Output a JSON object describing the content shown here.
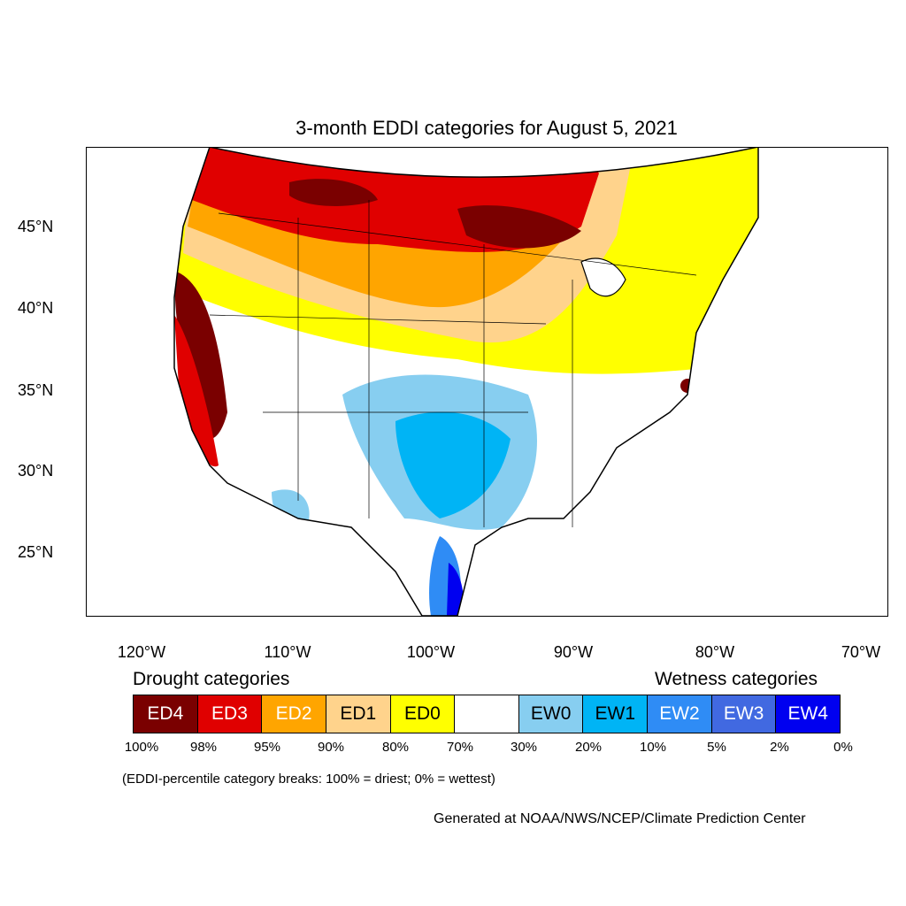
{
  "title": "3-month EDDI categories for August 5, 2021",
  "lat_labels": [
    "45°N",
    "40°N",
    "35°N",
    "30°N",
    "25°N"
  ],
  "lon_labels": [
    "120°W",
    "110°W",
    "100°W",
    "90°W",
    "80°W",
    "70°W"
  ],
  "drought_heading": "Drought categories",
  "wetness_heading": "Wetness categories",
  "legend": [
    {
      "label": "ED4",
      "color": "#7a0000",
      "text_color": "#ffffff"
    },
    {
      "label": "ED3",
      "color": "#e00000",
      "text_color": "#ffffff"
    },
    {
      "label": "ED2",
      "color": "#ffa500",
      "text_color": "#ffffff"
    },
    {
      "label": "ED1",
      "color": "#ffd38c",
      "text_color": "#000000"
    },
    {
      "label": "ED0",
      "color": "#ffff00",
      "text_color": "#000000"
    },
    {
      "label": "",
      "color": "#ffffff",
      "text_color": "#000000"
    },
    {
      "label": "EW0",
      "color": "#87cef0",
      "text_color": "#000000"
    },
    {
      "label": "EW1",
      "color": "#00b4f5",
      "text_color": "#000000"
    },
    {
      "label": "EW2",
      "color": "#2f8cf5",
      "text_color": "#ffffff"
    },
    {
      "label": "EW3",
      "color": "#4169e1",
      "text_color": "#ffffff"
    },
    {
      "label": "EW4",
      "color": "#0000f0",
      "text_color": "#ffffff"
    }
  ],
  "percent_breaks": [
    "100%",
    "98%",
    "95%",
    "90%",
    "80%",
    "70%",
    "30%",
    "20%",
    "10%",
    "5%",
    "2%",
    "0%"
  ],
  "note": "(EDDI-percentile category breaks: 100% = driest; 0% = wettest)",
  "credit": "Generated at NOAA/NWS/NCEP/Climate Prediction Center"
}
